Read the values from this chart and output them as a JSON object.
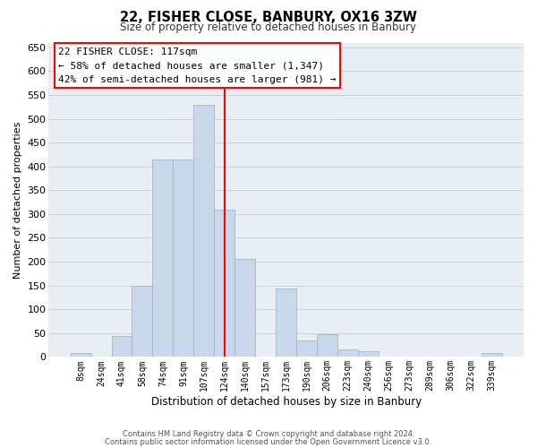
{
  "title": "22, FISHER CLOSE, BANBURY, OX16 3ZW",
  "subtitle": "Size of property relative to detached houses in Banbury",
  "xlabel": "Distribution of detached houses by size in Banbury",
  "ylabel": "Number of detached properties",
  "bar_labels": [
    "8sqm",
    "24sqm",
    "41sqm",
    "58sqm",
    "74sqm",
    "91sqm",
    "107sqm",
    "124sqm",
    "140sqm",
    "157sqm",
    "173sqm",
    "190sqm",
    "206sqm",
    "223sqm",
    "240sqm",
    "256sqm",
    "273sqm",
    "289sqm",
    "306sqm",
    "322sqm",
    "339sqm"
  ],
  "bar_heights": [
    8,
    0,
    44,
    150,
    415,
    415,
    530,
    310,
    205,
    0,
    143,
    35,
    48,
    15,
    13,
    0,
    0,
    0,
    0,
    0,
    8
  ],
  "bar_color": "#c8d8ea",
  "bar_edge_color": "#a0b8cc",
  "vline_x": 7.0,
  "vline_color": "red",
  "ylim": [
    0,
    660
  ],
  "yticks": [
    0,
    50,
    100,
    150,
    200,
    250,
    300,
    350,
    400,
    450,
    500,
    550,
    600,
    650
  ],
  "annotation_title": "22 FISHER CLOSE: 117sqm",
  "annotation_line1": "← 58% of detached houses are smaller (1,347)",
  "annotation_line2": "42% of semi-detached houses are larger (981) →",
  "footer_line1": "Contains HM Land Registry data © Crown copyright and database right 2024.",
  "footer_line2": "Contains public sector information licensed under the Open Government Licence v3.0.",
  "bg_color": "#ffffff",
  "grid_color": "#c8d4de",
  "plot_bg_color": "#e8eef4"
}
